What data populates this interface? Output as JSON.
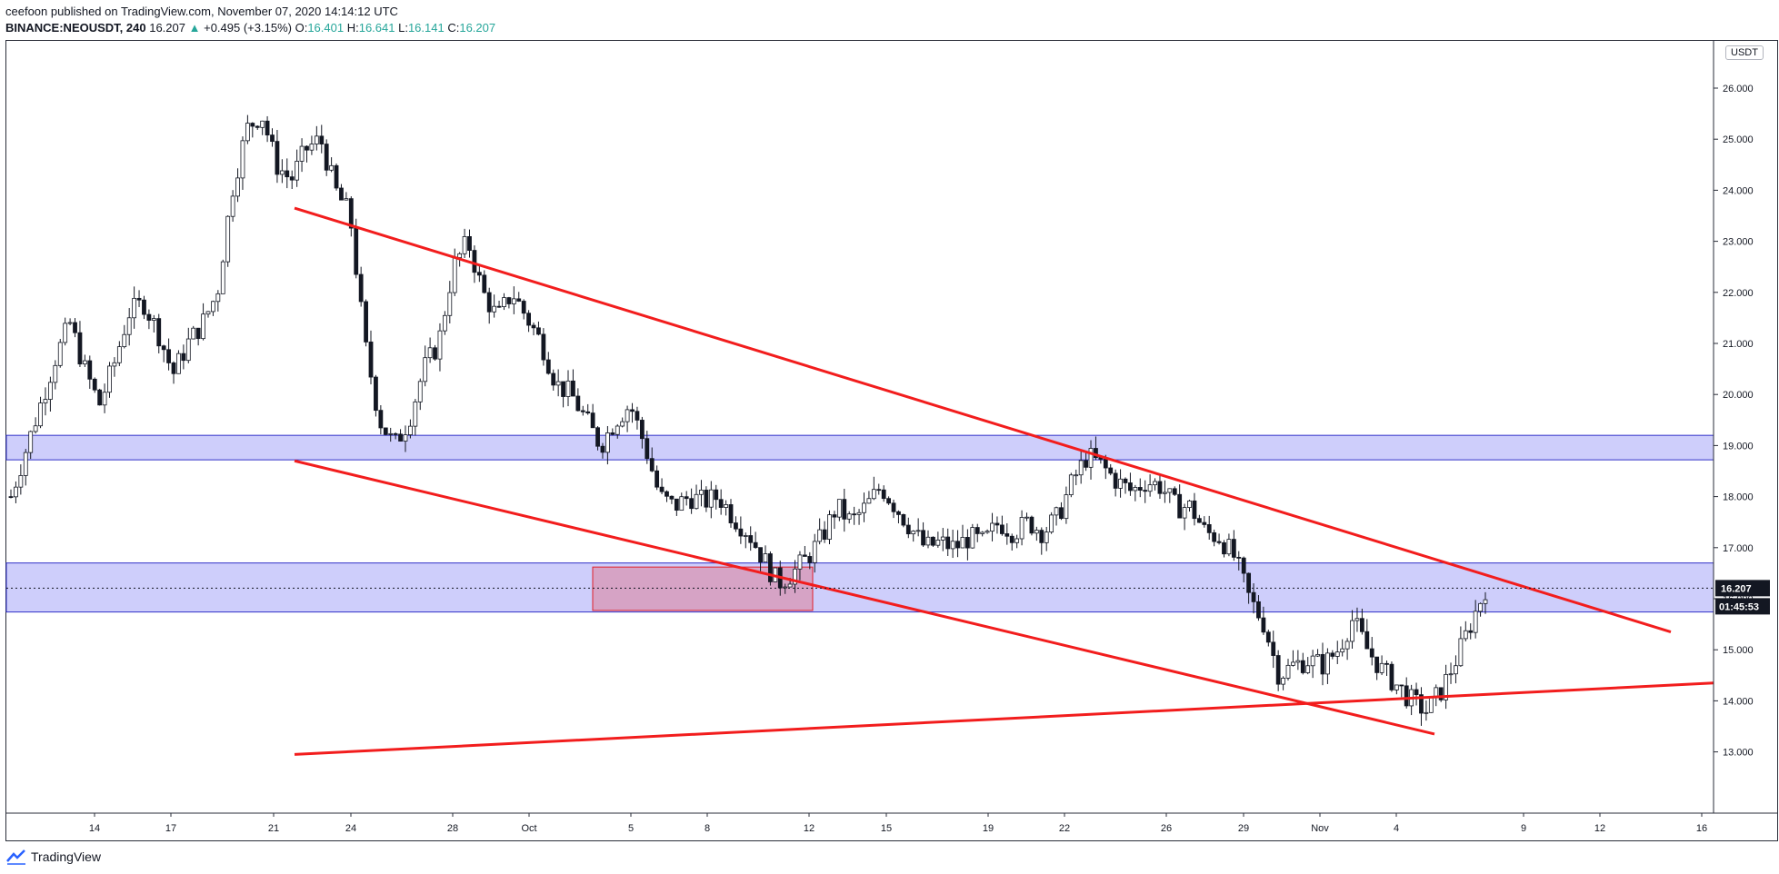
{
  "header": {
    "published_line": "ceefoon published on TradingView.com, November 07, 2020 14:14:12 UTC",
    "symbol": "BINANCE:NEOUSDT, 240",
    "last": "16.207",
    "change_arrow": "▲",
    "change": "+0.495 (+3.15%)",
    "o_label": "O:",
    "o_value": "16.401",
    "h_label": "H:",
    "h_value": "16.641",
    "l_label": "L:",
    "l_value": "16.141",
    "c_label": "C:",
    "c_value": "16.207"
  },
  "currency_badge": "USDT",
  "footer": {
    "brand": "TradingView",
    "icon": "tradingview-logo-icon"
  },
  "colors": {
    "up": "#26a69a",
    "drawing": "#f21d1d",
    "zone_fill": "#c5c6fa",
    "zone_border": "#3030c8",
    "box_fill": "#d899b8",
    "candle": "#131722"
  },
  "chart_data": {
    "type": "candlestick",
    "price_labels": [
      "26.000",
      "25.000",
      "24.000",
      "23.000",
      "22.000",
      "21.000",
      "20.000",
      "19.000",
      "18.000",
      "17.000",
      "16.000",
      "15.000",
      "14.000",
      "13.000"
    ],
    "price_ticks": [
      26,
      25,
      24,
      23,
      22,
      21,
      20,
      19,
      18,
      17,
      16,
      15,
      14,
      13
    ],
    "x_labels": [
      "14",
      "17",
      "21",
      "24",
      "28",
      "Oct",
      "5",
      "8",
      "12",
      "15",
      "19",
      "22",
      "26",
      "29",
      "Nov",
      "4",
      "9",
      "12",
      "16"
    ],
    "current_price_label": "16.207",
    "countdown_label": "01:45:53",
    "current_price": 16.207,
    "close_path": [
      [
        0,
        18.0
      ],
      [
        1,
        18.9
      ],
      [
        2,
        19.8
      ],
      [
        3,
        20.7
      ],
      [
        4,
        21.4
      ],
      [
        5,
        20.5
      ],
      [
        6,
        19.8
      ],
      [
        7,
        20.6
      ],
      [
        8,
        21.6
      ],
      [
        9,
        21.8
      ],
      [
        10,
        21.2
      ],
      [
        11,
        20.4
      ],
      [
        12,
        21.0
      ],
      [
        13,
        21.4
      ],
      [
        14,
        22.0
      ],
      [
        15,
        24.0
      ],
      [
        16,
        25.2
      ],
      [
        17,
        25.5
      ],
      [
        18,
        24.5
      ],
      [
        19,
        24.2
      ],
      [
        20,
        24.8
      ],
      [
        21,
        25.0
      ],
      [
        22,
        24.0
      ],
      [
        23,
        23.5
      ],
      [
        24,
        21.0
      ],
      [
        25,
        19.5
      ],
      [
        26,
        19.0
      ],
      [
        27,
        19.5
      ],
      [
        28,
        20.5
      ],
      [
        29,
        21.0
      ],
      [
        30,
        22.5
      ],
      [
        31,
        23.0
      ],
      [
        32,
        22.0
      ],
      [
        33,
        21.5
      ],
      [
        34,
        22.0
      ],
      [
        35,
        21.5
      ],
      [
        36,
        21.0
      ],
      [
        37,
        20.2
      ],
      [
        38,
        20.0
      ],
      [
        39,
        19.5
      ],
      [
        40,
        19.0
      ],
      [
        41,
        19.5
      ],
      [
        42,
        19.8
      ],
      [
        43,
        19.0
      ],
      [
        44,
        18.0
      ],
      [
        45,
        17.8
      ],
      [
        46,
        18.0
      ],
      [
        47,
        17.9
      ],
      [
        48,
        18.0
      ],
      [
        49,
        17.6
      ],
      [
        50,
        17.3
      ],
      [
        51,
        16.8
      ],
      [
        52,
        16.3
      ],
      [
        53,
        16.5
      ],
      [
        54,
        16.8
      ],
      [
        55,
        17.2
      ],
      [
        56,
        17.8
      ],
      [
        57,
        17.5
      ],
      [
        58,
        17.8
      ],
      [
        59,
        18.2
      ],
      [
        60,
        17.8
      ],
      [
        61,
        17.4
      ],
      [
        62,
        17.0
      ],
      [
        63,
        17.1
      ],
      [
        64,
        17.0
      ],
      [
        65,
        17.2
      ],
      [
        66,
        17.1
      ],
      [
        67,
        17.5
      ],
      [
        68,
        17.3
      ],
      [
        69,
        17.5
      ],
      [
        70,
        17.3
      ],
      [
        71,
        17.6
      ],
      [
        72,
        18.3
      ],
      [
        73,
        18.8
      ],
      [
        74,
        18.6
      ],
      [
        75,
        18.3
      ],
      [
        76,
        18.1
      ],
      [
        77,
        18.3
      ],
      [
        78,
        18.2
      ],
      [
        79,
        17.8
      ],
      [
        80,
        17.8
      ],
      [
        81,
        17.3
      ],
      [
        82,
        17.2
      ],
      [
        83,
        16.8
      ],
      [
        84,
        16.0
      ],
      [
        85,
        15.5
      ],
      [
        86,
        14.5
      ],
      [
        87,
        14.7
      ],
      [
        88,
        14.8
      ],
      [
        89,
        14.7
      ],
      [
        90,
        15.0
      ],
      [
        91,
        15.6
      ],
      [
        92,
        15.0
      ],
      [
        93,
        14.6
      ],
      [
        94,
        14.3
      ],
      [
        95,
        14.0
      ],
      [
        96,
        13.8
      ],
      [
        97,
        14.2
      ],
      [
        98,
        14.8
      ],
      [
        99,
        15.5
      ],
      [
        100,
        16.2
      ]
    ],
    "zones": [
      {
        "name": "upper-zone",
        "from": 18.72,
        "to": 19.2
      },
      {
        "name": "lower-zone",
        "from": 15.74,
        "to": 16.7
      }
    ],
    "highlight_box": {
      "x_from": "Oct 3",
      "x_to": "Oct 12",
      "low": 15.77,
      "high": 16.62
    },
    "trendlines": [
      {
        "name": "channel-top",
        "from": [
          "Sep 21",
          23.65
        ],
        "to": [
          "Nov 14",
          15.35
        ]
      },
      {
        "name": "channel-bottom",
        "from": [
          "Sep 21",
          18.7
        ],
        "to": [
          "Nov 5",
          13.35
        ]
      },
      {
        "name": "support-line",
        "from": [
          "Sep 21",
          12.95
        ],
        "to": [
          "Nov 19",
          14.35
        ]
      }
    ],
    "ylim": [
      12.7,
      27.2
    ],
    "grid": false,
    "title": "",
    "xlabel": "",
    "ylabel": ""
  }
}
